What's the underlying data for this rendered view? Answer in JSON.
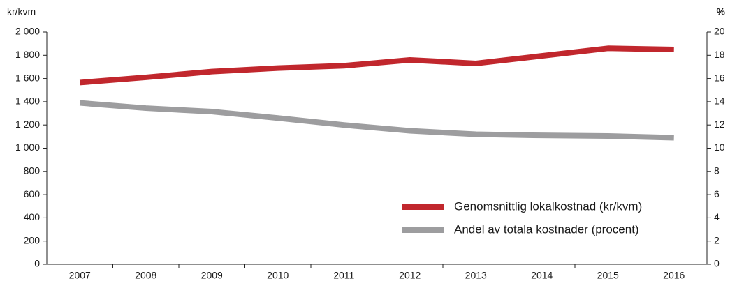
{
  "chart_data": {
    "type": "line",
    "y_label": "kr/kvm",
    "y2_label": "%",
    "categories": [
      "2007",
      "2008",
      "2009",
      "2010",
      "2011",
      "2012",
      "2013",
      "2014",
      "2015",
      "2016"
    ],
    "series": [
      {
        "name": "Genomsnittlig lokalkostnad (kr/kvm)",
        "color": "#c1272d",
        "values": [
          1565,
          1610,
          1660,
          1690,
          1710,
          1760,
          1730,
          1795,
          1860,
          1850
        ]
      },
      {
        "name": "Andel av totala kostnader (procent)",
        "color": "#9d9d9f",
        "axis": "y2",
        "values": [
          13.9,
          13.45,
          13.15,
          12.6,
          12.0,
          11.5,
          11.2,
          11.1,
          11.05,
          10.9
        ]
      }
    ],
    "ylim": [
      0,
      2000
    ],
    "yticks": [
      0,
      200,
      400,
      600,
      800,
      {
        "value": 1000,
        "label": "1 000"
      },
      {
        "value": 1200,
        "label": "1 200"
      },
      {
        "value": 1400,
        "label": "1 400"
      },
      {
        "value": 1600,
        "label": "1 600"
      },
      {
        "value": 1800,
        "label": "1 800"
      },
      {
        "value": 2000,
        "label": "2 000"
      }
    ],
    "y2lim": [
      0,
      20
    ],
    "y2ticks": [
      0,
      2,
      4,
      6,
      8,
      10,
      12,
      14,
      16,
      18,
      20
    ],
    "grid": false,
    "legend": "lower right"
  }
}
